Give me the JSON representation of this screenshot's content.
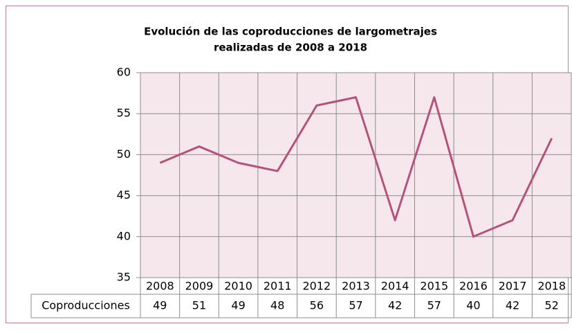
{
  "chart_data": {
    "type": "line",
    "title": [
      "Evolución de las coproducciones de largometrajes",
      "realizadas  de  2008  a 2018"
    ],
    "categories": [
      "2008",
      "2009",
      "2010",
      "2011",
      "2012",
      "2013",
      "2014",
      "2015",
      "2016",
      "2017",
      "2018"
    ],
    "series": [
      {
        "name": "Coproducciones",
        "color": "#b5527a",
        "values": [
          49,
          51,
          49,
          48,
          56,
          57,
          42,
          57,
          40,
          42,
          52
        ]
      }
    ],
    "ylim": [
      35,
      60
    ],
    "yticks": [
      35,
      40,
      45,
      50,
      55,
      60
    ],
    "grid": true,
    "plot_background": "#f6e7ed"
  }
}
